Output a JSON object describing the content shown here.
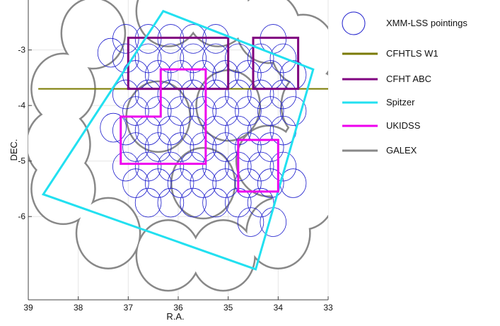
{
  "chart_data": {
    "type": "scatter",
    "xlabel": "R.A.",
    "ylabel": "DEC.",
    "xlim": [
      39,
      33
    ],
    "ylim": [
      -7.5,
      -2.1
    ],
    "x_ticks": [
      "39",
      "38",
      "37",
      "36",
      "35",
      "34",
      "33"
    ],
    "y_ticks": [
      "-3",
      "-4",
      "-5",
      "-6"
    ],
    "grid": true,
    "legend_position": "right",
    "legend": [
      {
        "key": "xmm",
        "label": "XMM-LSS  pointings",
        "color": "#1a1acc",
        "symbol": "circle"
      },
      {
        "key": "cfhtls",
        "label": "CFHTLS W1",
        "color": "#7a7a00",
        "symbol": "line"
      },
      {
        "key": "abc",
        "label": "CFHT  ABC",
        "color": "#800080",
        "symbol": "line"
      },
      {
        "key": "spitzer",
        "label": "Spitzer",
        "color": "#22e0f0",
        "symbol": "line"
      },
      {
        "key": "ukidss",
        "label": "UKIDSS",
        "color": "#ee00ee",
        "symbol": "line"
      },
      {
        "key": "galex",
        "label": "GALEX",
        "color": "#888888",
        "symbol": "line"
      }
    ],
    "xmm_pointings": {
      "radius_deg": 0.26,
      "points": [
        [
          37.05,
          -2.8
        ],
        [
          36.6,
          -2.8
        ],
        [
          36.15,
          -2.8
        ],
        [
          35.7,
          -2.8
        ],
        [
          35.25,
          -2.8
        ],
        [
          34.1,
          -2.8
        ],
        [
          37.05,
          -3.15
        ],
        [
          36.6,
          -3.15
        ],
        [
          36.15,
          -3.15
        ],
        [
          35.7,
          -3.15
        ],
        [
          35.25,
          -3.15
        ],
        [
          34.8,
          -3.15
        ],
        [
          34.35,
          -3.15
        ],
        [
          33.9,
          -3.15
        ],
        [
          36.85,
          -3.45
        ],
        [
          36.4,
          -3.45
        ],
        [
          35.95,
          -3.45
        ],
        [
          35.5,
          -3.45
        ],
        [
          35.05,
          -3.45
        ],
        [
          34.6,
          -3.45
        ],
        [
          34.15,
          -3.45
        ],
        [
          33.7,
          -3.45
        ],
        [
          37.05,
          -3.8
        ],
        [
          36.6,
          -3.8
        ],
        [
          36.15,
          -3.8
        ],
        [
          35.7,
          -3.8
        ],
        [
          35.25,
          -3.8
        ],
        [
          34.8,
          -3.8
        ],
        [
          34.35,
          -3.8
        ],
        [
          33.9,
          -3.8
        ],
        [
          36.85,
          -4.1
        ],
        [
          36.4,
          -4.1
        ],
        [
          35.95,
          -4.1
        ],
        [
          35.5,
          -4.1
        ],
        [
          35.05,
          -4.1
        ],
        [
          34.6,
          -4.1
        ],
        [
          34.15,
          -4.1
        ],
        [
          33.7,
          -4.1
        ],
        [
          37.05,
          -4.45
        ],
        [
          36.6,
          -4.45
        ],
        [
          36.15,
          -4.45
        ],
        [
          35.7,
          -4.45
        ],
        [
          35.25,
          -4.45
        ],
        [
          34.8,
          -4.45
        ],
        [
          34.35,
          -4.45
        ],
        [
          33.9,
          -4.45
        ],
        [
          36.85,
          -4.75
        ],
        [
          36.4,
          -4.75
        ],
        [
          35.95,
          -4.75
        ],
        [
          35.5,
          -4.75
        ],
        [
          35.05,
          -4.75
        ],
        [
          34.6,
          -4.75
        ],
        [
          34.15,
          -4.75
        ],
        [
          37.05,
          -5.1
        ],
        [
          36.6,
          -5.1
        ],
        [
          36.15,
          -5.1
        ],
        [
          35.7,
          -5.1
        ],
        [
          35.25,
          -5.1
        ],
        [
          34.8,
          -5.1
        ],
        [
          34.35,
          -5.1
        ],
        [
          33.9,
          -5.1
        ],
        [
          36.85,
          -5.4
        ],
        [
          36.4,
          -5.4
        ],
        [
          35.95,
          -5.4
        ],
        [
          35.5,
          -5.4
        ],
        [
          35.05,
          -5.4
        ],
        [
          34.6,
          -5.4
        ],
        [
          34.15,
          -5.4
        ],
        [
          33.7,
          -5.4
        ],
        [
          36.6,
          -5.75
        ],
        [
          36.15,
          -5.75
        ],
        [
          35.7,
          -5.75
        ],
        [
          35.25,
          -5.75
        ],
        [
          34.8,
          -5.75
        ],
        [
          34.35,
          -5.75
        ],
        [
          34.55,
          -6.1
        ],
        [
          34.1,
          -6.1
        ],
        [
          37.35,
          -3.05
        ],
        [
          37.3,
          -4.4
        ]
      ]
    },
    "cfhtls_w1": {
      "dec": -3.7,
      "ra_range": [
        38.8,
        33.0
      ]
    },
    "cfht_abc": [
      {
        "ra": [
          37.0,
          35.0
        ],
        "dec": [
          -2.78,
          -3.7
        ]
      },
      {
        "ra": [
          34.5,
          33.6
        ],
        "dec": [
          -2.78,
          -3.7
        ]
      }
    ],
    "spitzer": [
      [
        38.7,
        -5.6
      ],
      [
        36.3,
        -2.3
      ],
      [
        33.3,
        -3.35
      ],
      [
        34.45,
        -6.95
      ]
    ],
    "ukidss": [
      [
        [
          36.35,
          -3.35
        ],
        [
          35.45,
          -3.35
        ],
        [
          35.45,
          -5.05
        ],
        [
          37.15,
          -5.05
        ],
        [
          37.15,
          -4.2
        ],
        [
          36.35,
          -4.2
        ]
      ],
      [
        [
          34.8,
          -4.62
        ],
        [
          34.0,
          -4.62
        ],
        [
          34.0,
          -5.55
        ],
        [
          34.8,
          -5.55
        ]
      ]
    ],
    "galex_centers": [
      [
        37.7,
        -2.7
      ],
      [
        36.2,
        -2.3
      ],
      [
        35.2,
        -2.3
      ],
      [
        34.2,
        -2.6
      ],
      [
        33.5,
        -3.0
      ],
      [
        33.3,
        -4.0
      ],
      [
        33.3,
        -4.8
      ],
      [
        33.5,
        -5.6
      ],
      [
        34.0,
        -6.3
      ],
      [
        35.1,
        -6.7
      ],
      [
        36.2,
        -6.7
      ],
      [
        37.4,
        -6.3
      ],
      [
        38.3,
        -5.5
      ],
      [
        38.4,
        -4.7
      ],
      [
        38.3,
        -3.7
      ],
      [
        36.4,
        -4.2
      ],
      [
        35.0,
        -4.0
      ],
      [
        35.5,
        -5.4
      ],
      [
        34.2,
        -5.0
      ]
    ]
  }
}
